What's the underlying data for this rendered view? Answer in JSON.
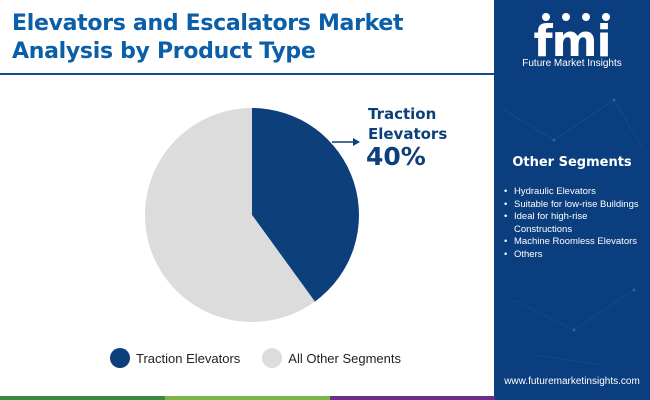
{
  "header": {
    "title": "Elevators and Escalators Market Analysis by Product Type"
  },
  "chart_data": {
    "type": "pie",
    "title": "Elevators and Escalators Market Analysis by Product Type",
    "slices": [
      {
        "name": "Traction Elevators",
        "value": 40,
        "color": "#0d3f7a"
      },
      {
        "name": "All Other Segments",
        "value": 60,
        "color": "#dcdcdc"
      }
    ],
    "start_angle_deg": 0,
    "direction": "clockwise",
    "annotation": {
      "label": "Traction Elevators",
      "value_text": "40%"
    },
    "legend_position": "bottom"
  },
  "legend": {
    "items": [
      {
        "label": "Traction Elevators",
        "color": "#0d3f7a"
      },
      {
        "label": "All Other Segments",
        "color": "#dcdcdc"
      }
    ]
  },
  "sidebar": {
    "logo_text": "fmi",
    "logo_subtitle": "Future Market Insights",
    "segments_title": "Other Segments",
    "segments": [
      "Hydraulic Elevators",
      "Suitable for low-rise Buildings",
      "Ideal for high-rise Constructions",
      "Machine Roomless Elevators",
      "Others"
    ],
    "website": "www.futuremarketinsights.com",
    "background_color": "#0b3e7e"
  },
  "footer_colors": [
    "#3a8d3e",
    "#7ab648",
    "#6b2f8a",
    "#0b3e7e"
  ]
}
